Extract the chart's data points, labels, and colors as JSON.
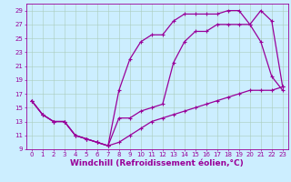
{
  "xlabel": "Windchill (Refroidissement éolien,°C)",
  "bg_color": "#cceeff",
  "grid_color": "#aaccbb",
  "line_color": "#990099",
  "xlim": [
    -0.5,
    23.5
  ],
  "ylim": [
    9,
    30
  ],
  "yticks": [
    9,
    11,
    13,
    15,
    17,
    19,
    21,
    23,
    25,
    27,
    29
  ],
  "xticks": [
    0,
    1,
    2,
    3,
    4,
    5,
    6,
    7,
    8,
    9,
    10,
    11,
    12,
    13,
    14,
    15,
    16,
    17,
    18,
    19,
    20,
    21,
    22,
    23
  ],
  "curve1_x": [
    0,
    1,
    2,
    3,
    4,
    5,
    6,
    7,
    8,
    9,
    10,
    11,
    12,
    13,
    14,
    15,
    16,
    17,
    18,
    19,
    20,
    21,
    22,
    23
  ],
  "curve1_y": [
    16,
    14,
    13,
    13,
    11,
    10.5,
    10,
    9.5,
    10,
    11,
    12,
    13,
    13.5,
    14,
    14.5,
    15,
    15.5,
    16,
    16.5,
    17,
    17.5,
    17.5,
    17.5,
    18
  ],
  "curve2_x": [
    0,
    1,
    2,
    3,
    4,
    5,
    6,
    7,
    8,
    9,
    10,
    11,
    12,
    13,
    14,
    15,
    16,
    17,
    18,
    19,
    20,
    21,
    22,
    23
  ],
  "curve2_y": [
    16,
    14,
    13,
    13,
    11,
    10.5,
    10,
    9.5,
    17.5,
    22,
    24.5,
    25.5,
    25.5,
    27.5,
    28.5,
    28.5,
    28.5,
    28.5,
    29,
    29,
    27,
    24.5,
    19.5,
    17.5
  ],
  "curve3_x": [
    0,
    1,
    2,
    3,
    4,
    5,
    6,
    7,
    8,
    9,
    10,
    11,
    12,
    13,
    14,
    15,
    16,
    17,
    18,
    19,
    20,
    21,
    22,
    23
  ],
  "curve3_y": [
    16,
    14,
    13,
    13,
    11,
    10.5,
    10,
    9.5,
    13.5,
    13.5,
    14.5,
    15,
    15.5,
    21.5,
    24.5,
    26,
    26,
    27,
    27,
    27,
    27,
    29,
    27.5,
    18
  ],
  "marker_size": 2,
  "line_width": 0.9,
  "tick_fontsize": 5,
  "xlabel_fontsize": 6.5
}
